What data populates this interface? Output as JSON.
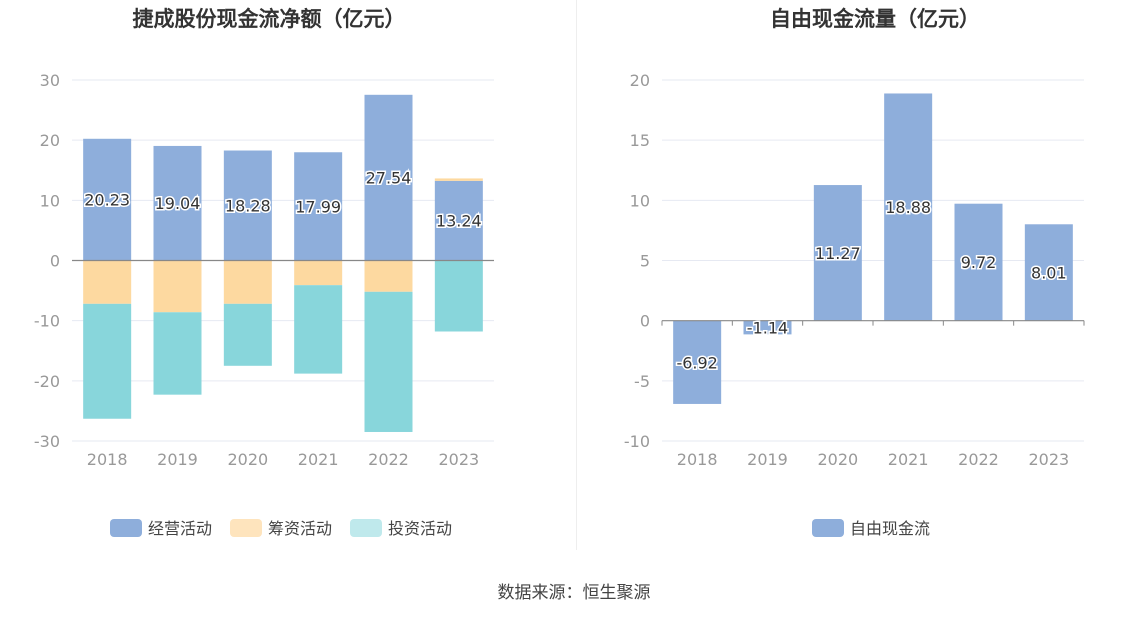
{
  "chart_data": [
    {
      "type": "bar",
      "stacked": true,
      "title": "捷成股份现金流净额（亿元）",
      "categories": [
        "2018",
        "2019",
        "2020",
        "2021",
        "2022",
        "2023"
      ],
      "ylim": [
        -30,
        30
      ],
      "yticks": [
        30,
        20,
        10,
        0,
        -10,
        -20,
        -30
      ],
      "grid": true,
      "legend_position": "bottom",
      "series": [
        {
          "name": "经营活动",
          "color": "#8eaedb",
          "values": [
            20.23,
            19.04,
            18.28,
            17.99,
            27.54,
            13.24
          ],
          "labels": [
            "20.23",
            "19.04",
            "18.28",
            "17.99",
            "27.54",
            "13.24"
          ]
        },
        {
          "name": "筹资活动",
          "color": "#fdd9a0",
          "values": [
            -7.2,
            -8.6,
            -7.2,
            -4.1,
            -5.2,
            0.4
          ]
        },
        {
          "name": "投资活动",
          "color": "#88d6db",
          "values": [
            -19.1,
            -13.7,
            -10.3,
            -14.7,
            -23.3,
            -11.8
          ]
        }
      ]
    },
    {
      "type": "bar",
      "title": "自由现金流量（亿元）",
      "categories": [
        "2018",
        "2019",
        "2020",
        "2021",
        "2022",
        "2023"
      ],
      "ylim": [
        -10,
        20
      ],
      "yticks": [
        20,
        15,
        10,
        5,
        0,
        -5,
        -10
      ],
      "grid": true,
      "legend_position": "bottom",
      "series": [
        {
          "name": "自由现金流",
          "color": "#8eaedb",
          "values": [
            -6.92,
            -1.14,
            11.27,
            18.88,
            9.72,
            8.01
          ],
          "labels": [
            "-6.92",
            "-1.14",
            "11.27",
            "18.88",
            "9.72",
            "8.01"
          ]
        }
      ]
    }
  ],
  "source": "数据来源：恒生聚源"
}
